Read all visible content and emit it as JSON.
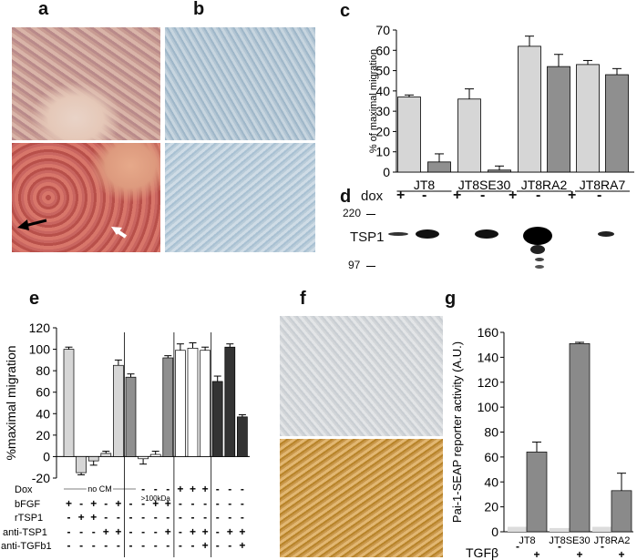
{
  "panel_labels": {
    "a": "a",
    "b": "b",
    "c": "c",
    "d": "d",
    "e": "e",
    "f": "f",
    "g": "g"
  },
  "colors": {
    "light_bar": "#d6d6d6",
    "mid_bar": "#8f8f8f",
    "white_bar": "#ffffff",
    "dark_bar": "#333333",
    "g_light": "#dcdcdc",
    "g_dark": "#8a8a8a"
  },
  "chart_data": [
    {
      "panel": "c",
      "type": "bar",
      "ylabel": "% of maximal migration",
      "ylim": [
        0,
        70
      ],
      "yticks": [
        0,
        10,
        20,
        30,
        40,
        50,
        60,
        70
      ],
      "groups": [
        "JT8",
        "JT8SE30",
        "JT8RA2",
        "JT8RA7"
      ],
      "row_label": "dox",
      "signs": [
        "+",
        "-",
        "+",
        "-",
        "+",
        "-",
        "+",
        "-"
      ],
      "values": [
        37,
        5,
        36,
        1,
        62,
        52,
        53,
        48
      ],
      "errors": [
        1,
        4,
        5,
        2,
        5,
        6,
        2,
        3
      ],
      "fills": [
        "light",
        "mid",
        "light",
        "mid",
        "light",
        "mid",
        "light",
        "mid"
      ]
    },
    {
      "panel": "e",
      "type": "bar",
      "ylabel": "%maximal migration",
      "ylim": [
        -20,
        120
      ],
      "yticks": [
        -20,
        0,
        20,
        40,
        60,
        80,
        100,
        120
      ],
      "values": [
        100,
        -15,
        -4,
        3,
        85,
        74,
        -2,
        2,
        92,
        99,
        101,
        99,
        70,
        102,
        37
      ],
      "errors": [
        2,
        2,
        4,
        2,
        5,
        3,
        5,
        3,
        2,
        6,
        5,
        3,
        5,
        3,
        2
      ],
      "fills": [
        "light",
        "light",
        "light",
        "light",
        "light",
        "mid",
        "white",
        "white",
        "mid",
        "white",
        "white",
        "white",
        "dark",
        "dark",
        "dark"
      ],
      "annotations": {
        "no_cm": "no CM",
        "gt100": ">100kDa"
      },
      "rows": [
        {
          "label": "Dox",
          "signs": [
            "",
            "",
            "",
            "",
            "",
            "",
            "-",
            "-",
            "-",
            "+",
            "+",
            "+",
            "-",
            "-",
            "-"
          ]
        },
        {
          "label": "bFGF",
          "signs": [
            "+",
            "-",
            "+",
            "-",
            "+",
            "-",
            "-",
            "+",
            "+",
            "-",
            "-",
            "-",
            "-",
            "-",
            "-"
          ]
        },
        {
          "label": "rTSP1",
          "signs": [
            "-",
            "+",
            "+",
            "-",
            "-",
            "-",
            "-",
            "-",
            "-",
            "-",
            "-",
            "-",
            "-",
            "-",
            "-"
          ]
        },
        {
          "label": "anti-TSP1",
          "signs": [
            "-",
            "-",
            "-",
            "+",
            "+",
            "-",
            "-",
            "-",
            "+",
            "-",
            "+",
            "+",
            "-",
            "+",
            "+"
          ]
        },
        {
          "label": "anti-TGFb1",
          "signs": [
            "-",
            "-",
            "-",
            "-",
            "-",
            "-",
            "-",
            "-",
            "-",
            "-",
            "-",
            "+",
            "-",
            "-",
            "+"
          ]
        }
      ]
    },
    {
      "panel": "g",
      "type": "bar",
      "ylabel": "Pai-1-SEAP reporter activity (A.U.)",
      "ylim": [
        0,
        160
      ],
      "yticks": [
        0,
        20,
        40,
        60,
        80,
        100,
        120,
        140,
        160
      ],
      "groups": [
        "JT8",
        "JT8SE30",
        "JT8RA2"
      ],
      "row_label": "TGFβ",
      "signs": [
        "-",
        "+",
        "-",
        "+",
        "-",
        "+"
      ],
      "values": [
        4,
        64,
        3,
        151,
        4,
        33
      ],
      "errors": [
        0,
        8,
        0,
        1,
        0,
        14
      ],
      "fills": [
        "light",
        "dark",
        "light",
        "dark",
        "light",
        "dark"
      ]
    }
  ],
  "blot": {
    "row_label": "dox",
    "signs": [
      "+",
      "-",
      "+",
      "-",
      "+",
      "-",
      "+",
      "-"
    ],
    "protein": "TSP1",
    "markers": [
      "220",
      "97"
    ]
  }
}
